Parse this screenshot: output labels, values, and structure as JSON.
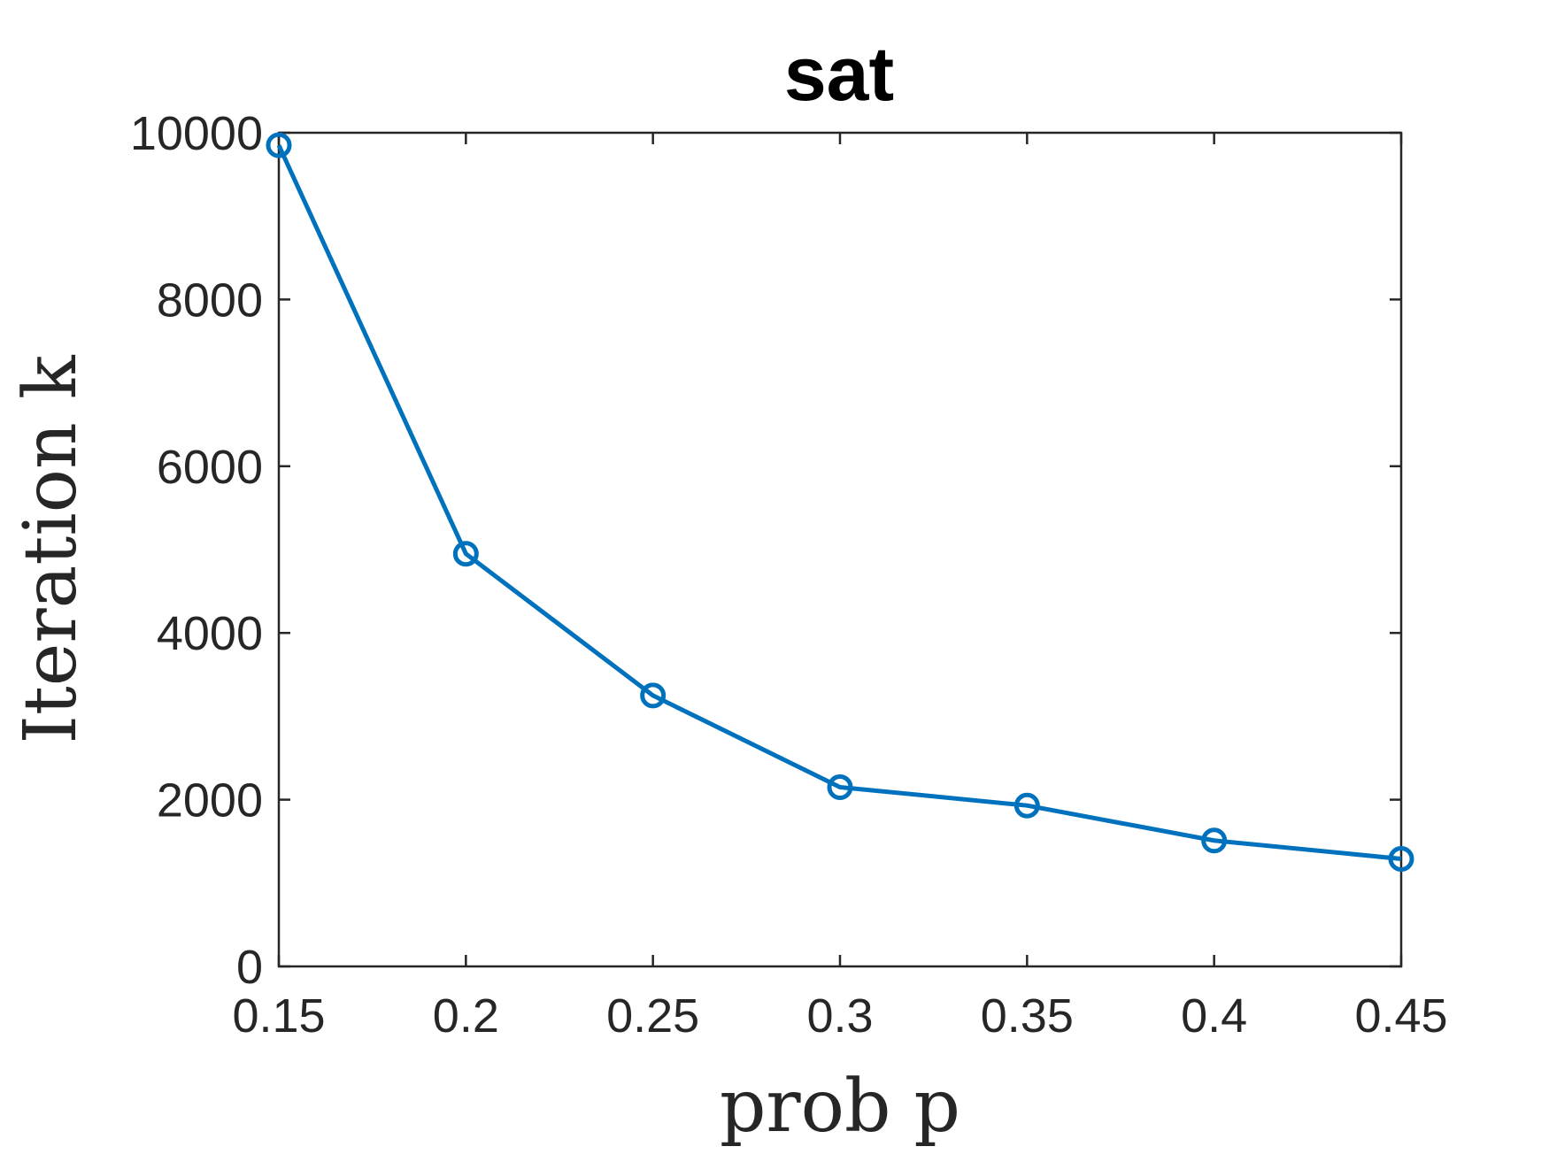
{
  "chart_data": {
    "type": "line",
    "title": "sat",
    "xlabel": "prob p",
    "ylabel": "Iteration k",
    "xlim": [
      0.15,
      0.45
    ],
    "ylim": [
      0,
      10000
    ],
    "xticks": [
      0.15,
      0.2,
      0.25,
      0.3,
      0.35,
      0.4,
      0.45
    ],
    "xtick_labels": [
      "0.15",
      "0.2",
      "0.25",
      "0.3",
      "0.35",
      "0.4",
      "0.45"
    ],
    "yticks": [
      0,
      2000,
      4000,
      6000,
      8000,
      10000
    ],
    "ytick_labels": [
      "0",
      "2000",
      "4000",
      "6000",
      "8000",
      "10000"
    ],
    "grid": false,
    "series": [
      {
        "x": [
          0.15,
          0.2,
          0.25,
          0.3,
          0.35,
          0.4,
          0.45
        ],
        "y": [
          9850,
          4950,
          3250,
          2150,
          1930,
          1510,
          1290
        ],
        "marker": "circle",
        "color": "#0072BD"
      }
    ]
  }
}
